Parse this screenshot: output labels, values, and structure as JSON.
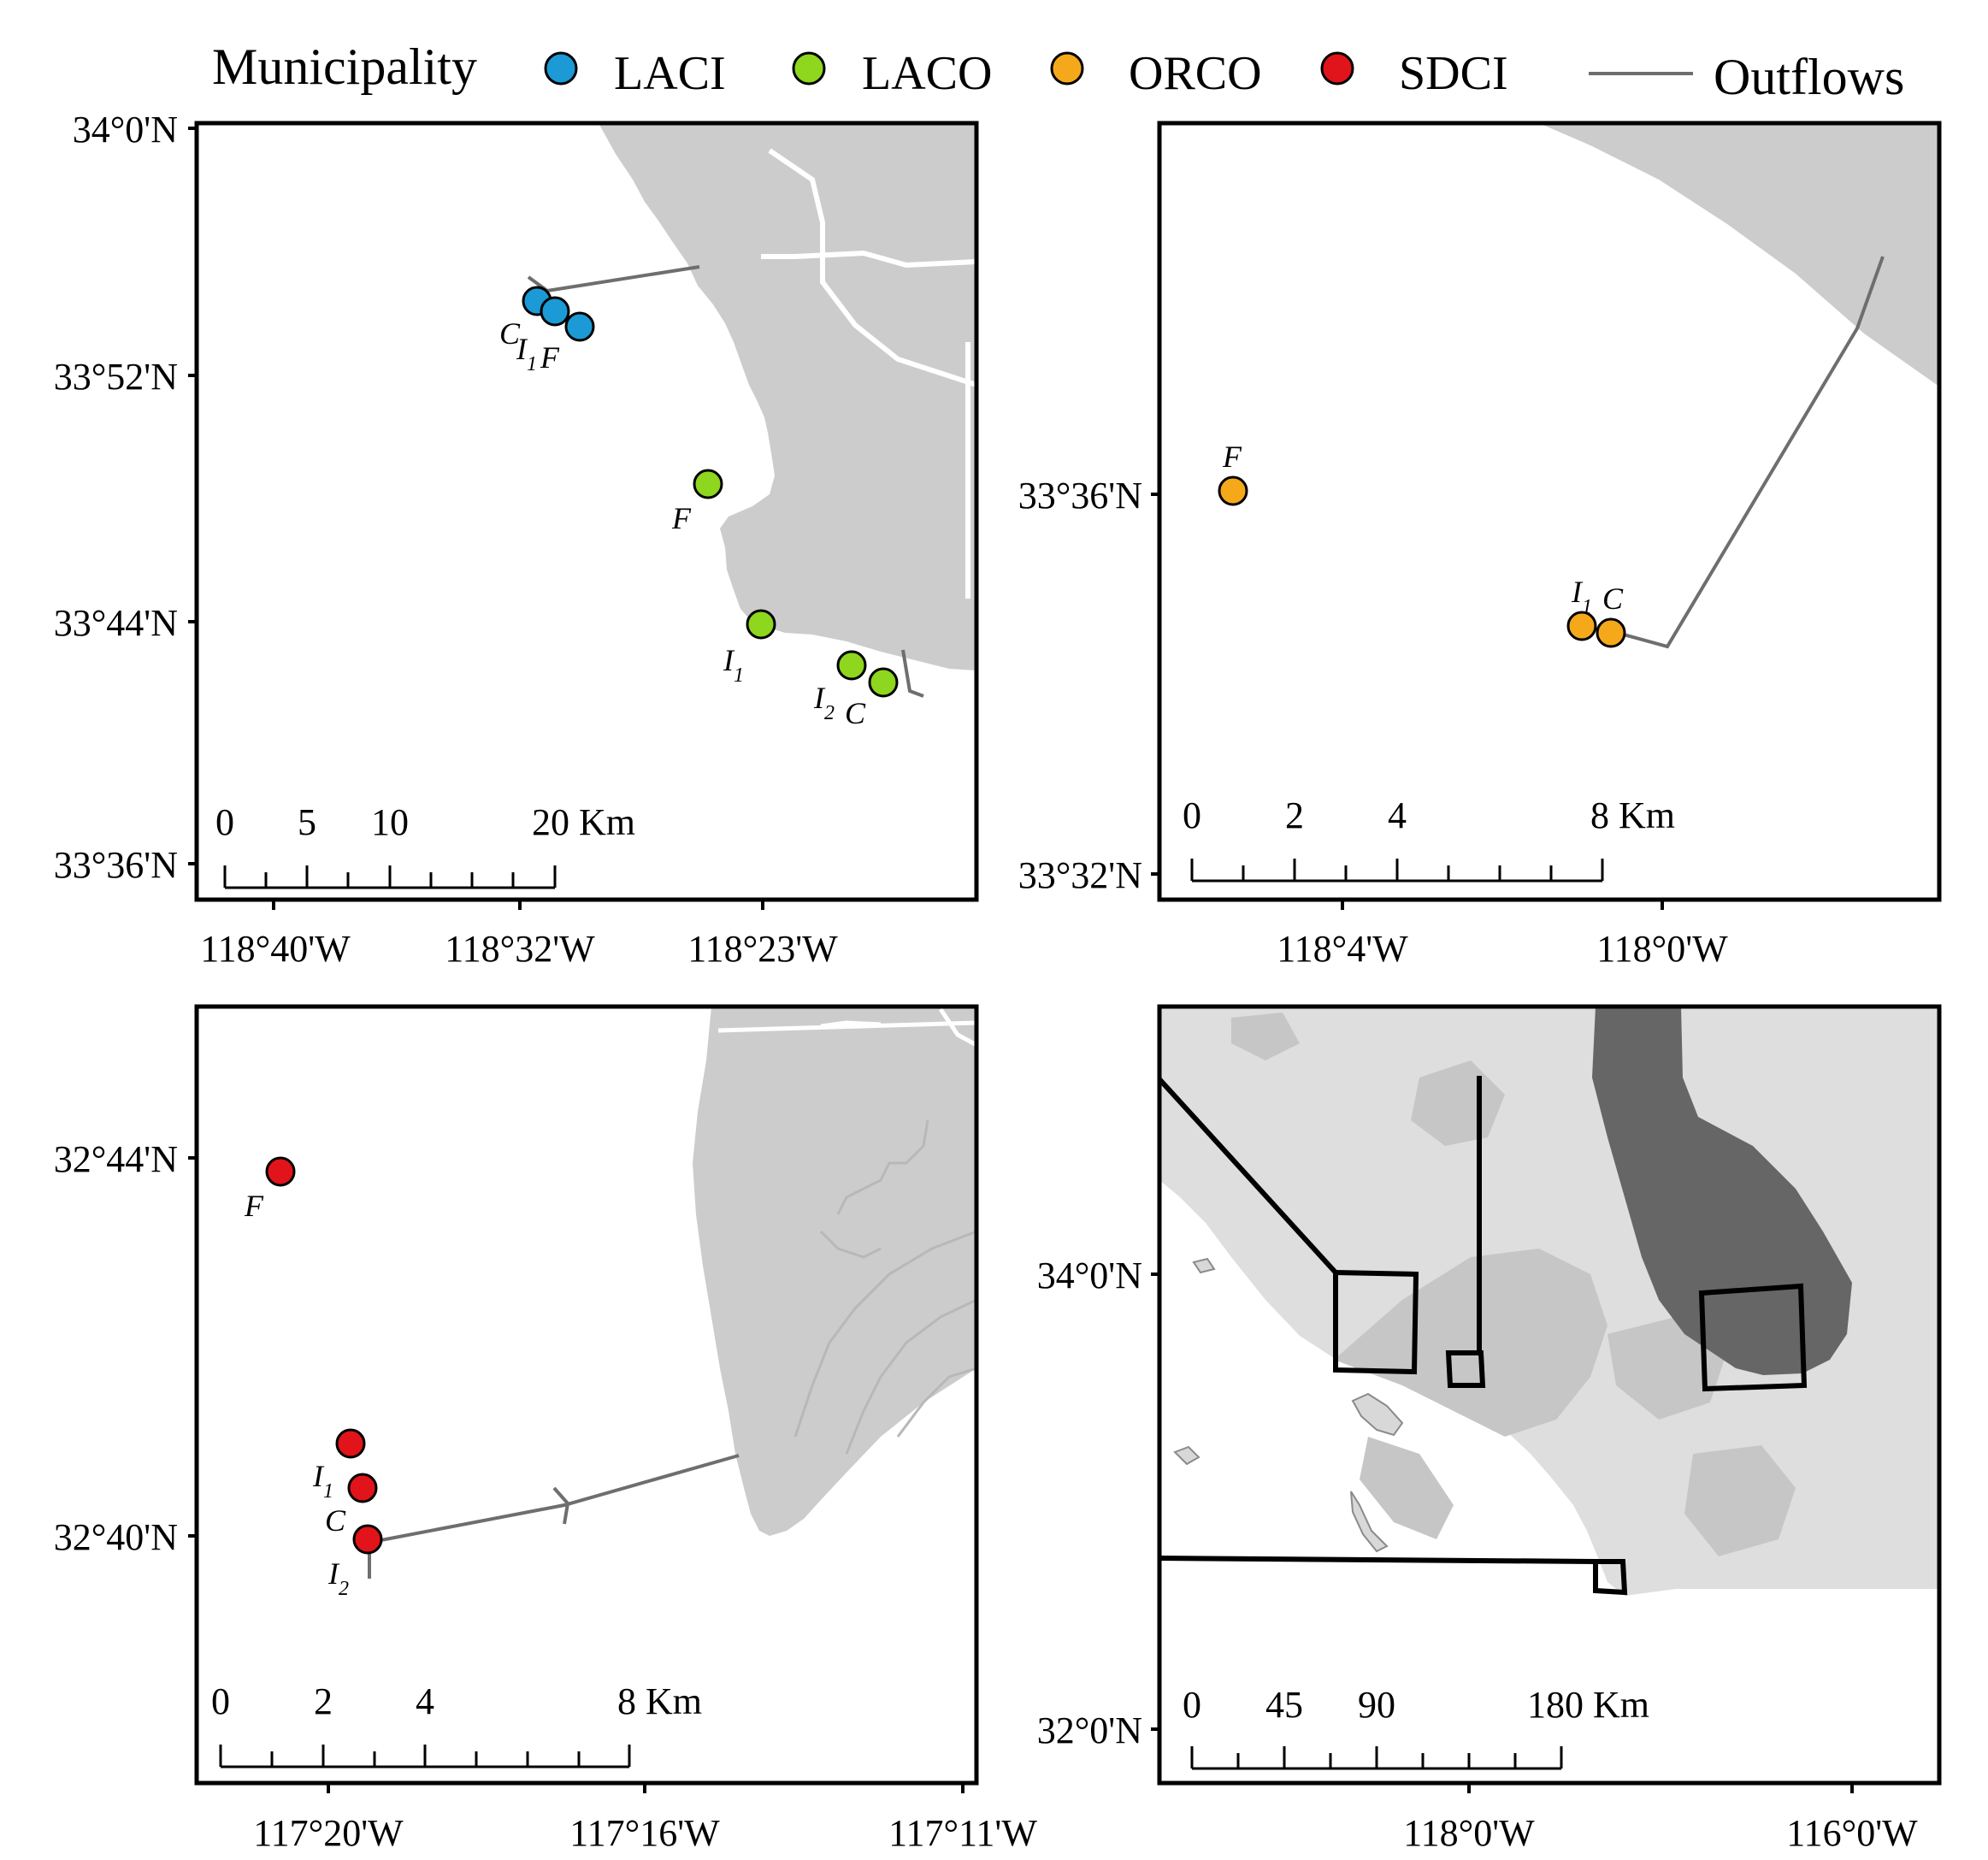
{
  "legend": {
    "title": "Municipality",
    "items": [
      {
        "label": "LACI",
        "color": "#1b9ad6"
      },
      {
        "label": "LACO",
        "color": "#8fd61e"
      },
      {
        "label": "ORCO",
        "color": "#f5a91a"
      },
      {
        "label": "SDCI",
        "color": "#e0141a"
      }
    ],
    "outflows_label": "Outflows",
    "outflows_color": "#6e6e6e"
  },
  "colors": {
    "land": "#cccccc",
    "land_context": "#dedede",
    "urban": "#c6c6c6",
    "california": "#666666",
    "roads": "#ffffff"
  },
  "panels": {
    "tl": {
      "y_ticks": [
        "34°0'N",
        "33°52'N",
        "33°44'N",
        "33°36'N"
      ],
      "x_ticks": [
        "118°40'W",
        "118°32'W",
        "118°23'W"
      ],
      "scale": [
        "0",
        "5",
        "10",
        "20 Km"
      ],
      "sites": [
        {
          "label": "C",
          "sub": "",
          "group": "LACI"
        },
        {
          "label": "I",
          "sub": "1",
          "group": "LACI"
        },
        {
          "label": "F",
          "sub": "",
          "group": "LACI"
        },
        {
          "label": "F",
          "sub": "",
          "group": "LACO"
        },
        {
          "label": "I",
          "sub": "1",
          "group": "LACO"
        },
        {
          "label": "I",
          "sub": "2",
          "group": "LACO"
        },
        {
          "label": "C",
          "sub": "",
          "group": "LACO"
        }
      ]
    },
    "tr": {
      "y_ticks": [
        "33°36'N",
        "33°32'N"
      ],
      "x_ticks": [
        "118°4'W",
        "118°0'W"
      ],
      "scale": [
        "0",
        "2",
        "4",
        "8 Km"
      ],
      "sites": [
        {
          "label": "F",
          "sub": "",
          "group": "ORCO"
        },
        {
          "label": "I",
          "sub": "1",
          "group": "ORCO"
        },
        {
          "label": "C",
          "sub": "",
          "group": "ORCO"
        }
      ]
    },
    "bl": {
      "y_ticks": [
        "32°44'N",
        "32°40'N"
      ],
      "x_ticks": [
        "117°20'W",
        "117°16'W",
        "117°11'W"
      ],
      "scale": [
        "0",
        "2",
        "4",
        "8 Km"
      ],
      "sites": [
        {
          "label": "F",
          "sub": "",
          "group": "SDCI"
        },
        {
          "label": "I",
          "sub": "1",
          "group": "SDCI"
        },
        {
          "label": "C",
          "sub": "",
          "group": "SDCI"
        },
        {
          "label": "I",
          "sub": "2",
          "group": "SDCI"
        }
      ]
    },
    "br": {
      "y_ticks": [
        "34°0'N",
        "32°0'N"
      ],
      "x_ticks": [
        "118°0'W",
        "116°0'W"
      ],
      "scale": [
        "0",
        "45",
        "90",
        "180 Km"
      ]
    }
  }
}
